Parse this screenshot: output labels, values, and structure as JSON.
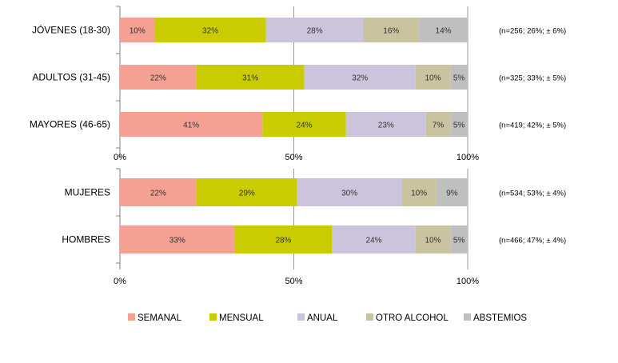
{
  "chart_data": [
    {
      "type": "bar",
      "orientation": "horizontal",
      "stacked": true,
      "percent_scale": true,
      "categories": [
        "JÓVENES  (18-30)",
        "ADULTOS (31-45)",
        "MAYORES (46-65)"
      ],
      "annotations": [
        "(n=256; 26%; ± 6%)",
        "(n=325; 33%; ± 5%)",
        "(n=419; 42%; ± 5%)"
      ],
      "xlim": [
        0,
        100
      ],
      "xticks": [
        "0%",
        "50%",
        "100%"
      ],
      "grid": "vertical-major",
      "series": [
        {
          "name": "SEMANAL",
          "values": [
            10,
            22,
            41
          ],
          "labels": [
            "10%",
            "22%",
            "41%"
          ]
        },
        {
          "name": "MENSUAL",
          "values": [
            32,
            31,
            24
          ],
          "labels": [
            "32%",
            "31%",
            "24%"
          ]
        },
        {
          "name": "ANUAL",
          "values": [
            28,
            32,
            23
          ],
          "labels": [
            "28%",
            "32%",
            "23%"
          ]
        },
        {
          "name": "OTRO ALCOHOL",
          "values": [
            16,
            10,
            7
          ],
          "labels": [
            "16%",
            "10%",
            "7%"
          ]
        },
        {
          "name": "ABSTEMIOS",
          "values": [
            14,
            5,
            5
          ],
          "labels": [
            "14%",
            "5%",
            "5%"
          ]
        }
      ]
    },
    {
      "type": "bar",
      "orientation": "horizontal",
      "stacked": true,
      "percent_scale": true,
      "categories": [
        "MUJERES",
        "HOMBRES"
      ],
      "annotations": [
        "(n=534; 53%; ± 4%)",
        "(n=466; 47%; ± 4%)"
      ],
      "xlim": [
        0,
        100
      ],
      "xticks": [
        "0%",
        "50%",
        "100%"
      ],
      "grid": "vertical-major",
      "series": [
        {
          "name": "SEMANAL",
          "values": [
            22,
            33
          ],
          "labels": [
            "22%",
            "33%"
          ]
        },
        {
          "name": "MENSUAL",
          "values": [
            29,
            28
          ],
          "labels": [
            "29%",
            "28%"
          ]
        },
        {
          "name": "ANUAL",
          "values": [
            30,
            24
          ],
          "labels": [
            "30%",
            "24%"
          ]
        },
        {
          "name": "OTRO ALCOHOL",
          "values": [
            10,
            10
          ],
          "labels": [
            "10%",
            "10%"
          ]
        },
        {
          "name": "ABSTEMIOS",
          "values": [
            9,
            5
          ],
          "labels": [
            "9%",
            "5%"
          ]
        }
      ]
    }
  ],
  "legend": {
    "placement": "bottom",
    "items": [
      {
        "label": "SEMANAL",
        "color": "#F4A092"
      },
      {
        "label": "MENSUAL",
        "color": "#C8CC00"
      },
      {
        "label": "ANUAL",
        "color": "#CCC4DC"
      },
      {
        "label": "OTRO ALCOHOL",
        "color": "#C9C39F"
      },
      {
        "label": "ABSTEMIOS",
        "color": "#BFBFBF"
      }
    ]
  },
  "colors": {
    "series": [
      "#F4A092",
      "#C8CC00",
      "#CCC4DC",
      "#C9C39F",
      "#BFBFBF"
    ],
    "axis": "#808080",
    "grid": "#808080",
    "text": "#000000"
  }
}
